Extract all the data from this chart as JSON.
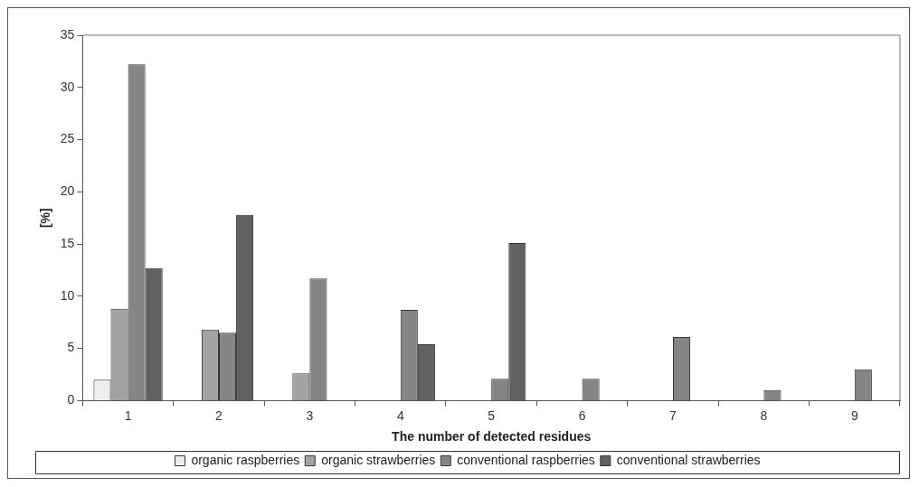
{
  "chart_data": {
    "type": "bar",
    "xlabel": "The number of detected residues",
    "ylabel": "[%]",
    "categories": [
      "1",
      "2",
      "3",
      "4",
      "5",
      "6",
      "7",
      "8",
      "9"
    ],
    "series": [
      {
        "name": "organic raspberries",
        "color": "#eeeeee",
        "values": [
          2.0,
          null,
          null,
          null,
          null,
          null,
          null,
          null,
          null
        ]
      },
      {
        "name": "organic strawberries",
        "color": "#a3a3a3",
        "values": [
          8.8,
          6.8,
          2.6,
          null,
          null,
          null,
          null,
          null,
          null
        ]
      },
      {
        "name": "conventional raspberries",
        "color": "#858585",
        "values": [
          32.2,
          6.5,
          11.7,
          8.7,
          2.1,
          2.1,
          6.1,
          1.0,
          3.0
        ]
      },
      {
        "name": "conventional strawberries",
        "color": "#616161",
        "values": [
          12.7,
          17.8,
          null,
          5.4,
          15.1,
          null,
          null,
          null,
          null
        ]
      }
    ],
    "ylim": [
      0,
      35
    ],
    "yticks": [
      0,
      5,
      10,
      15,
      20,
      25,
      30,
      35
    ],
    "grid": false,
    "legend": "bottom"
  }
}
